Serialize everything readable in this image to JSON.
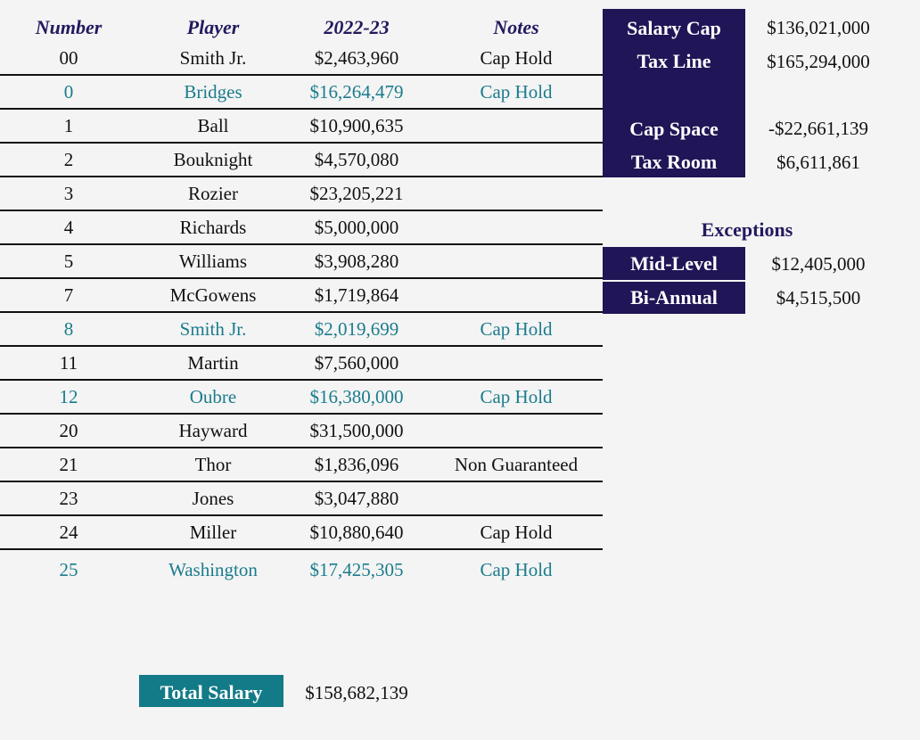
{
  "headers": {
    "number": "Number",
    "player": "Player",
    "season": "2022-23",
    "notes": "Notes"
  },
  "roster": [
    {
      "number": "00",
      "player": "Smith Jr.",
      "salary": "$2,463,960",
      "note": "Cap Hold",
      "hold_style": false
    },
    {
      "number": "0",
      "player": "Bridges",
      "salary": "$16,264,479",
      "note": "Cap Hold",
      "hold_style": true
    },
    {
      "number": "1",
      "player": "Ball",
      "salary": "$10,900,635",
      "note": "",
      "hold_style": false
    },
    {
      "number": "2",
      "player": "Bouknight",
      "salary": "$4,570,080",
      "note": "",
      "hold_style": false
    },
    {
      "number": "3",
      "player": "Rozier",
      "salary": "$23,205,221",
      "note": "",
      "hold_style": false
    },
    {
      "number": "4",
      "player": "Richards",
      "salary": "$5,000,000",
      "note": "",
      "hold_style": false
    },
    {
      "number": "5",
      "player": "Williams",
      "salary": "$3,908,280",
      "note": "",
      "hold_style": false
    },
    {
      "number": "7",
      "player": "McGowens",
      "salary": "$1,719,864",
      "note": "",
      "hold_style": false
    },
    {
      "number": "8",
      "player": "Smith Jr.",
      "salary": "$2,019,699",
      "note": "Cap Hold",
      "hold_style": true
    },
    {
      "number": "11",
      "player": "Martin",
      "salary": "$7,560,000",
      "note": "",
      "hold_style": false
    },
    {
      "number": "12",
      "player": "Oubre",
      "salary": "$16,380,000",
      "note": "Cap Hold",
      "hold_style": true
    },
    {
      "number": "20",
      "player": "Hayward",
      "salary": "$31,500,000",
      "note": "",
      "hold_style": false
    },
    {
      "number": "21",
      "player": "Thor",
      "salary": "$1,836,096",
      "note": "Non Guaranteed",
      "hold_style": false
    },
    {
      "number": "23",
      "player": "Jones",
      "salary": "$3,047,880",
      "note": "",
      "hold_style": false
    },
    {
      "number": "24",
      "player": "Miller",
      "salary": "$10,880,640",
      "note": "Cap Hold",
      "hold_style": false
    },
    {
      "number": "25",
      "player": "Washington",
      "salary": "$17,425,305",
      "note": "Cap Hold",
      "hold_style": true
    }
  ],
  "summary": {
    "salary_cap_label": "Salary Cap",
    "salary_cap_value": "$136,021,000",
    "tax_line_label": "Tax Line",
    "tax_line_value": "$165,294,000",
    "cap_space_label": "Cap Space",
    "cap_space_value": "-$22,661,139",
    "tax_room_label": "Tax Room",
    "tax_room_value": "$6,611,861"
  },
  "exceptions": {
    "title": "Exceptions",
    "mid_level_label": "Mid-Level",
    "mid_level_value": "$12,405,000",
    "bi_annual_label": "Bi-Annual",
    "bi_annual_value": "$4,515,500"
  },
  "total": {
    "label": "Total Salary",
    "value": "$158,682,139"
  },
  "colors": {
    "navy": "#201556",
    "teal": "#1a7c8c",
    "header_text": "#221a5e",
    "background": "#f4f4f4"
  }
}
